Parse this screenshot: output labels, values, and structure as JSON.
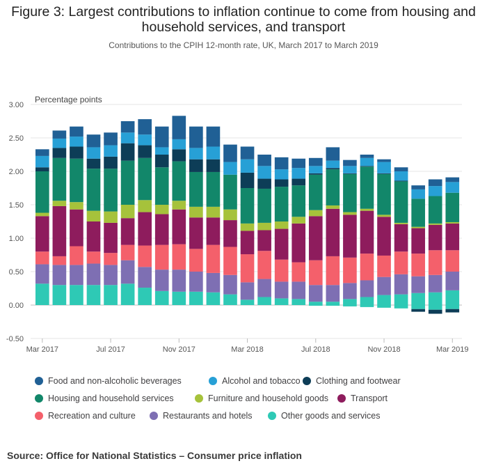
{
  "title": "Figure 3: Largest contributions to inflation continue to come from housing and household services, and transport",
  "subtitle": "Contributions to the CPIH 12-month rate, UK, March 2017 to March 2019",
  "source": "Source: Office for National Statistics – Consumer price inflation",
  "chart_data": {
    "type": "bar",
    "stacked": true,
    "ylabel": "Percentage points",
    "ylim": [
      -0.5,
      3.0
    ],
    "yticks": [
      "3.00",
      "2.50",
      "2.00",
      "1.50",
      "1.00",
      "0.50",
      "0.00",
      "-0.50"
    ],
    "xtick_labels": [
      "Mar 2017",
      "Jul 2017",
      "Nov 2017",
      "Mar 2018",
      "Jul 2018",
      "Nov 2018",
      "Mar 2019"
    ],
    "categories": [
      "Mar 2017",
      "Apr 2017",
      "May 2017",
      "Jun 2017",
      "Jul 2017",
      "Aug 2017",
      "Sep 2017",
      "Oct 2017",
      "Nov 2017",
      "Dec 2017",
      "Jan 2018",
      "Feb 2018",
      "Mar 2018",
      "Apr 2018",
      "May 2018",
      "Jun 2018",
      "Jul 2018",
      "Aug 2018",
      "Sep 2018",
      "Oct 2018",
      "Nov 2018",
      "Dec 2018",
      "Jan 2019",
      "Feb 2019",
      "Mar 2019"
    ],
    "grid": true,
    "legend_position": "bottom",
    "series": [
      {
        "name": "Other goods and services",
        "color": "#2ec9b5",
        "values": [
          0.32,
          0.3,
          0.3,
          0.3,
          0.3,
          0.32,
          0.26,
          0.21,
          0.2,
          0.2,
          0.19,
          0.16,
          0.08,
          0.12,
          0.1,
          0.09,
          0.05,
          0.05,
          0.09,
          0.12,
          0.15,
          0.16,
          0.18,
          0.19,
          0.22
        ]
      },
      {
        "name": "Restaurants and hotels",
        "color": "#7e6fb3",
        "values": [
          0.29,
          0.3,
          0.3,
          0.32,
          0.3,
          0.35,
          0.31,
          0.32,
          0.33,
          0.3,
          0.29,
          0.29,
          0.26,
          0.27,
          0.25,
          0.26,
          0.25,
          0.25,
          0.24,
          0.25,
          0.27,
          0.3,
          0.25,
          0.26,
          0.28
        ]
      },
      {
        "name": "Recreation and culture",
        "color": "#f4606b",
        "values": [
          0.19,
          0.13,
          0.28,
          0.18,
          0.18,
          0.23,
          0.32,
          0.37,
          0.38,
          0.34,
          0.42,
          0.42,
          0.42,
          0.42,
          0.33,
          0.29,
          0.37,
          0.43,
          0.38,
          0.4,
          0.32,
          0.34,
          0.34,
          0.37,
          0.32
        ]
      },
      {
        "name": "Transport",
        "color": "#8e1c5d",
        "values": [
          0.53,
          0.75,
          0.55,
          0.45,
          0.45,
          0.4,
          0.5,
          0.46,
          0.52,
          0.47,
          0.41,
          0.4,
          0.35,
          0.31,
          0.46,
          0.58,
          0.66,
          0.71,
          0.64,
          0.64,
          0.58,
          0.41,
          0.38,
          0.38,
          0.4
        ]
      },
      {
        "name": "Furniture and household goods",
        "color": "#a6c23b",
        "values": [
          0.05,
          0.08,
          0.11,
          0.16,
          0.17,
          0.2,
          0.18,
          0.14,
          0.13,
          0.16,
          0.16,
          0.16,
          0.11,
          0.11,
          0.11,
          0.1,
          0.09,
          0.05,
          0.04,
          0.03,
          0.03,
          0.02,
          0.02,
          0.02,
          0.02
        ]
      },
      {
        "name": "Housing and household services",
        "color": "#12876a",
        "values": [
          0.62,
          0.64,
          0.65,
          0.63,
          0.64,
          0.66,
          0.63,
          0.56,
          0.59,
          0.52,
          0.52,
          0.52,
          0.53,
          0.51,
          0.52,
          0.47,
          0.53,
          0.54,
          0.57,
          0.63,
          0.61,
          0.62,
          0.42,
          0.41,
          0.44
        ]
      },
      {
        "name": "Clothing and footwear",
        "color": "#0d3d57",
        "values": [
          0.06,
          0.15,
          0.18,
          0.15,
          0.18,
          0.26,
          0.19,
          0.19,
          0.18,
          0.19,
          0.19,
          0.0,
          0.23,
          0.15,
          0.11,
          0.1,
          0.02,
          0.02,
          0.01,
          0.01,
          0.01,
          0.01,
          -0.04,
          -0.06,
          -0.05
        ]
      },
      {
        "name": "Alcohol and tobacco",
        "color": "#27a0d6",
        "values": [
          0.17,
          0.14,
          0.15,
          0.17,
          0.17,
          0.16,
          0.16,
          0.11,
          0.15,
          0.17,
          0.19,
          0.19,
          0.2,
          0.19,
          0.15,
          0.16,
          0.11,
          0.11,
          0.11,
          0.12,
          0.17,
          0.14,
          0.14,
          0.15,
          0.16
        ]
      },
      {
        "name": "Food and non-alcoholic beverages",
        "color": "#206095",
        "values": [
          0.1,
          0.12,
          0.15,
          0.19,
          0.19,
          0.17,
          0.23,
          0.31,
          0.35,
          0.32,
          0.3,
          0.26,
          0.19,
          0.17,
          0.18,
          0.14,
          0.12,
          0.2,
          0.09,
          0.05,
          0.04,
          0.06,
          0.06,
          0.1,
          0.07
        ]
      }
    ],
    "negative_overrides": {
      "Other goods and services": [
        0,
        0,
        0,
        0,
        0,
        0,
        0,
        0,
        0,
        0,
        0,
        0,
        0,
        0,
        0,
        0,
        -0.01,
        -0.01,
        -0.02,
        -0.03,
        -0.04,
        -0.05,
        -0.06,
        -0.07,
        -0.06
      ]
    }
  },
  "legend": [
    {
      "label": "Food and non-alcoholic beverages",
      "color": "#206095"
    },
    {
      "label": "Alcohol and tobacco",
      "color": "#27a0d6"
    },
    {
      "label": "Clothing and footwear",
      "color": "#0d3d57"
    },
    {
      "label": "Housing and household services",
      "color": "#12876a"
    },
    {
      "label": "Furniture and household goods",
      "color": "#a6c23b"
    },
    {
      "label": "Transport",
      "color": "#8e1c5d"
    },
    {
      "label": "Recreation and culture",
      "color": "#f4606b"
    },
    {
      "label": "Restaurants and hotels",
      "color": "#7e6fb3"
    },
    {
      "label": "Other goods and services",
      "color": "#2ec9b5"
    }
  ]
}
